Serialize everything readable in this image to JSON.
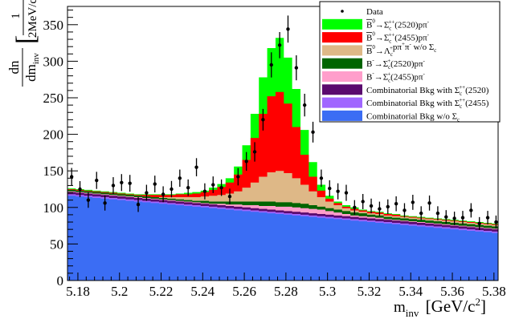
{
  "chart_data": {
    "type": "area",
    "title": "",
    "xlabel_main": "m",
    "xlabel_sub": "inv",
    "xlabel_unit": "[GeV/c",
    "xlabel_unit_sup": "2",
    "xlabel_unit_end": "]",
    "ylabel_num": "dn",
    "ylabel_den_main": "dm",
    "ylabel_den_sub": "inv",
    "ylabel_bracket_num": "1",
    "ylabel_bracket_den": "2MeV/c",
    "ylabel_bracket_sup": "2",
    "xlim": [
      5.175,
      5.382
    ],
    "ylim": [
      0,
      375
    ],
    "x_ticks": [
      "5.18",
      "5.2",
      "5.22",
      "5.24",
      "5.26",
      "5.28",
      "5.3",
      "5.32",
      "5.34",
      "5.36",
      "5.38"
    ],
    "y_ticks": [
      "0",
      "50",
      "100",
      "150",
      "200",
      "250",
      "300",
      "350"
    ],
    "bin_width": 0.004,
    "bin_centers": [
      5.177,
      5.181,
      5.185,
      5.189,
      5.193,
      5.197,
      5.201,
      5.205,
      5.209,
      5.213,
      5.217,
      5.221,
      5.225,
      5.229,
      5.233,
      5.237,
      5.241,
      5.245,
      5.249,
      5.253,
      5.257,
      5.261,
      5.265,
      5.269,
      5.273,
      5.277,
      5.281,
      5.285,
      5.289,
      5.293,
      5.297,
      5.301,
      5.305,
      5.309,
      5.313,
      5.317,
      5.321,
      5.325,
      5.329,
      5.333,
      5.337,
      5.341,
      5.345,
      5.349,
      5.353,
      5.357,
      5.361,
      5.365,
      5.369,
      5.373,
      5.377,
      5.381
    ],
    "stack_cumulative": {
      "comb_wo_sigma": [
        116,
        115,
        114,
        113,
        112,
        111,
        110,
        109,
        108,
        107,
        106,
        105,
        104,
        103,
        102,
        101,
        100,
        99,
        98,
        97,
        96,
        95,
        94,
        93,
        92,
        91,
        90,
        89,
        88,
        87,
        86,
        85,
        84,
        83,
        82,
        81,
        80,
        79,
        78,
        77,
        76,
        75,
        74,
        73,
        72,
        71,
        70,
        69,
        68,
        67,
        66,
        65
      ],
      "comb_2455": [
        118,
        117,
        116,
        115,
        114,
        113,
        112,
        111,
        110,
        109,
        108,
        107,
        106,
        105,
        104,
        103,
        102,
        101,
        100,
        99,
        98,
        97,
        96,
        95,
        94,
        93,
        92,
        91,
        90,
        89,
        88,
        87,
        86,
        85,
        84,
        83,
        82,
        81,
        80,
        79,
        78,
        77,
        76,
        75,
        74,
        73,
        72,
        71,
        70,
        69,
        68,
        67
      ],
      "comb_2520": [
        121,
        120,
        119,
        118,
        117,
        116,
        115,
        114,
        113,
        112,
        111,
        110,
        109,
        108,
        107,
        106,
        105,
        104,
        103,
        102,
        101,
        100,
        99,
        98,
        97,
        96,
        95,
        94,
        93,
        92,
        91,
        90,
        89,
        88,
        87,
        86,
        85,
        84,
        83,
        82,
        81,
        80,
        79,
        78,
        77,
        76,
        75,
        74,
        73,
        72,
        71,
        70
      ],
      "bminus_2455": [
        122,
        121,
        120,
        119,
        118,
        117,
        116,
        115,
        114,
        113,
        112,
        111,
        110,
        109,
        108,
        107,
        106,
        105,
        105,
        104,
        104,
        103,
        103,
        102,
        102,
        101,
        101,
        100,
        99,
        98,
        97,
        95,
        93,
        91,
        89,
        88,
        87,
        86,
        84,
        83,
        82,
        81,
        80,
        79,
        78,
        77,
        76,
        75,
        74,
        73,
        72,
        71
      ],
      "bminus_2520": [
        124,
        123,
        122,
        121,
        120,
        119,
        118,
        117,
        116,
        115,
        114,
        113,
        112,
        111,
        110,
        109,
        109,
        108,
        108,
        108,
        108,
        108,
        108,
        108,
        108,
        107,
        107,
        106,
        105,
        103,
        101,
        99,
        97,
        95,
        93,
        92,
        90,
        89,
        87,
        86,
        85,
        84,
        83,
        82,
        81,
        80,
        79,
        78,
        77,
        76,
        75,
        74
      ],
      "lambda_c_nonres": [
        124,
        123,
        122,
        121,
        120,
        119,
        118,
        117,
        116,
        115,
        114,
        114,
        114,
        114,
        114,
        114,
        115,
        116,
        117,
        119,
        122,
        127,
        134,
        142,
        148,
        150,
        147,
        140,
        131,
        122,
        114,
        108,
        103,
        99,
        96,
        94,
        92,
        91,
        89,
        88,
        87,
        86,
        85,
        84,
        83,
        82,
        81,
        80,
        79,
        78,
        77,
        76
      ],
      "b0_2455": [
        125,
        124,
        123,
        122,
        121,
        120,
        119,
        118,
        117,
        117,
        117,
        117,
        117,
        118,
        118,
        119,
        121,
        124,
        128,
        134,
        145,
        165,
        195,
        228,
        252,
        258,
        242,
        210,
        172,
        142,
        123,
        112,
        106,
        101,
        98,
        96,
        94,
        93,
        91,
        90,
        88,
        87,
        86,
        85,
        84,
        83,
        82,
        81,
        80,
        79,
        78,
        77
      ],
      "b0_2520": [
        126,
        125,
        124,
        123,
        122,
        121,
        120,
        119,
        118,
        118,
        118,
        118,
        118,
        119,
        120,
        121,
        123,
        127,
        132,
        140,
        156,
        185,
        228,
        278,
        318,
        332,
        305,
        262,
        206,
        162,
        131,
        116,
        108,
        103,
        100,
        97,
        95,
        94,
        92,
        91,
        89,
        88,
        87,
        86,
        85,
        84,
        83,
        82,
        81,
        80,
        79,
        78
      ]
    },
    "data_points": {
      "x": [
        5.177,
        5.181,
        5.185,
        5.189,
        5.193,
        5.197,
        5.201,
        5.205,
        5.209,
        5.213,
        5.217,
        5.221,
        5.225,
        5.229,
        5.233,
        5.237,
        5.241,
        5.245,
        5.249,
        5.253,
        5.257,
        5.261,
        5.265,
        5.269,
        5.273,
        5.277,
        5.281,
        5.285,
        5.289,
        5.293,
        5.297,
        5.301,
        5.305,
        5.309,
        5.313,
        5.317,
        5.321,
        5.325,
        5.329,
        5.333,
        5.337,
        5.341,
        5.345,
        5.349,
        5.353,
        5.357,
        5.361,
        5.365,
        5.369,
        5.373,
        5.377,
        5.381
      ],
      "y": [
        142,
        125,
        110,
        137,
        106,
        130,
        134,
        133,
        104,
        120,
        132,
        118,
        125,
        140,
        127,
        155,
        122,
        131,
        127,
        115,
        142,
        163,
        176,
        220,
        295,
        322,
        344,
        291,
        240,
        203,
        140,
        126,
        122,
        120,
        100,
        108,
        102,
        98,
        101,
        105,
        96,
        107,
        92,
        106,
        92,
        87,
        85,
        86,
        96,
        78,
        86,
        80
      ],
      "err": [
        12,
        11,
        10.5,
        11.7,
        10.3,
        11.4,
        11.6,
        11.5,
        10.2,
        11,
        11.5,
        10.9,
        11.2,
        11.8,
        11.3,
        12.4,
        11,
        11.4,
        11.3,
        10.7,
        11.9,
        12.8,
        13.3,
        14.8,
        17.2,
        17.9,
        18.5,
        17.1,
        15.5,
        14.2,
        11.8,
        11.2,
        11,
        11,
        10,
        10.4,
        10.1,
        9.9,
        10,
        10.2,
        9.8,
        10.3,
        9.6,
        10.3,
        9.6,
        9.3,
        9.2,
        9.3,
        9.8,
        8.8,
        9.3,
        8.9
      ]
    },
    "legend": {
      "placement": "top-right",
      "entries": [
        {
          "key": "data",
          "kind": "marker",
          "color": "#000000",
          "text": "Data"
        },
        {
          "key": "b0_2520",
          "kind": "fill",
          "color": "#00ff00",
          "pre": "B",
          "bar": true,
          "presup": "0",
          "arrow": "→",
          "main": "Σ",
          "sub": "c",
          "sup": "++",
          "rest": "(2520)",
          "pbar": "p",
          "tail": "π",
          "tailsup": "-"
        },
        {
          "key": "b0_2455",
          "kind": "fill",
          "color": "#ff0000",
          "pre": "B",
          "bar": true,
          "presup": "0",
          "arrow": "→",
          "main": "Σ",
          "sub": "c",
          "sup": "++",
          "rest": "(2455)",
          "pbar": "p",
          "tail": "π",
          "tailsup": "-"
        },
        {
          "key": "lambda_c_nonres",
          "kind": "fill",
          "color": "#deb887",
          "pre": "B",
          "bar": true,
          "presup": "0",
          "arrow": "→",
          "main": "Λ",
          "sub": "c",
          "sup": "+",
          "rest": "",
          "pbar": "p",
          "tail": "π",
          "tailsup": "+",
          "tail2": "π",
          "tail2sup": "-",
          "suffix": " w/o Σ",
          "suffixsub": "c"
        },
        {
          "key": "bminus_2520",
          "kind": "fill",
          "color": "#006400",
          "pre": "B",
          "bar": false,
          "presup": "-",
          "arrow": "→",
          "main": "Σ",
          "sub": "c",
          "sup": "+",
          "rest": "(2520)",
          "pbar": "p",
          "tail": "π",
          "tailsup": "-"
        },
        {
          "key": "bminus_2455",
          "kind": "fill",
          "color": "#ff9ecb",
          "pre": "B",
          "bar": false,
          "presup": "-",
          "arrow": "→",
          "main": "Σ",
          "sub": "c",
          "sup": "+",
          "rest": "(2455)",
          "pbar": "p",
          "tail": "π",
          "tailsup": "-"
        },
        {
          "key": "comb_2520",
          "kind": "fill",
          "color": "#5a0a6e",
          "text": "Combinatorial Bkg with Σ",
          "sub": "c",
          "sup": "++",
          "rest": "(2520)"
        },
        {
          "key": "comb_2455",
          "kind": "fill",
          "color": "#a066ff",
          "text": "Combinatorial Bkg with Σ",
          "sub": "c",
          "sup": "++",
          "rest": "(2455)"
        },
        {
          "key": "comb_wo_sigma",
          "kind": "fill",
          "color": "#3b6df4",
          "text": "Combinatorial Bkg w/o Σ",
          "sub": "c",
          "sup": "",
          "rest": ""
        }
      ]
    }
  }
}
